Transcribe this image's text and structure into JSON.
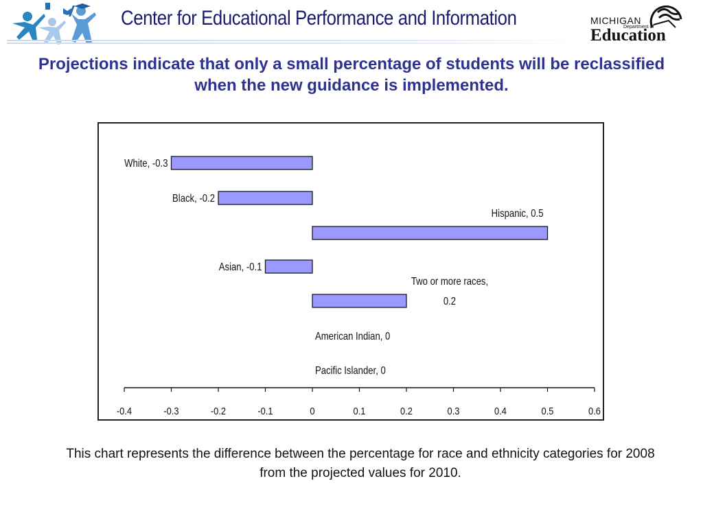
{
  "header": {
    "title": "Center for Educational Performance and Information",
    "logo_left": "CEPI kids logo",
    "logo_right": {
      "line1": "MICHIGAN",
      "line2": "Department of",
      "line3": "Education"
    }
  },
  "slide": {
    "title": "Projections indicate that only a small percentage of students will be reclassified when the new guidance is implemented.",
    "caption": "This chart represents the difference between the percentage for race and ethnicity categories for 2008 from the projected values for 2010."
  },
  "colors": {
    "bar_fill": "#9999ff",
    "bar_stroke": "#1a1a1a",
    "title": "#2e3192",
    "header_text": "#1a1a6e"
  },
  "chart_data": {
    "type": "bar",
    "orientation": "horizontal",
    "categories": [
      "White",
      "Black",
      "Hispanic",
      "Asian",
      "Two or more races",
      "American Indian",
      "Pacific Islander"
    ],
    "values": [
      -0.3,
      -0.2,
      0.5,
      -0.1,
      0.2,
      0,
      0
    ],
    "data_labels": [
      "White, -0.3",
      "Black, -0.2",
      "Hispanic, 0.5",
      "Asian, -0.1",
      "Two or more races,",
      "American Indian, 0",
      "Pacific Islander, 0"
    ],
    "data_label_extra": {
      "Two or more races": "0.2"
    },
    "xlim": [
      -0.4,
      0.6
    ],
    "xticks": [
      "-0.4",
      "-0.3",
      "-0.2",
      "-0.1",
      "0",
      "0.1",
      "0.2",
      "0.3",
      "0.4",
      "0.5",
      "0.6"
    ],
    "title": "",
    "xlabel": "",
    "ylabel": "",
    "grid": false,
    "legend": "none"
  }
}
